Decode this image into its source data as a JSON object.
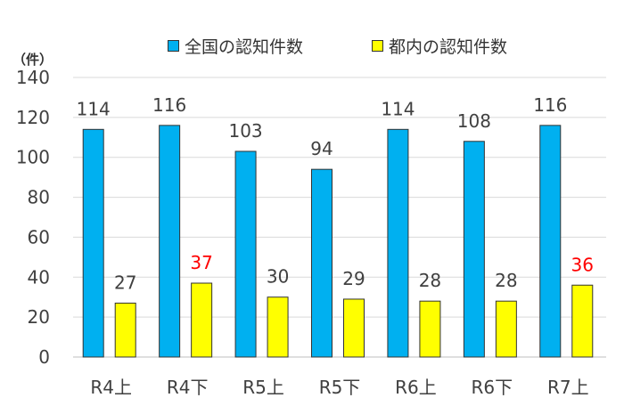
{
  "chart_data": {
    "type": "bar",
    "unit_label": "（件）",
    "categories": [
      "R4上",
      "R4下",
      "R5上",
      "R5下",
      "R6上",
      "R6下",
      "R7上"
    ],
    "series": [
      {
        "name": "全国の認知件数",
        "values": [
          114,
          116,
          103,
          94,
          114,
          108,
          116
        ],
        "color": "#00B0F0",
        "label_colors": [
          "#404040",
          "#404040",
          "#404040",
          "#404040",
          "#404040",
          "#404040",
          "#404040"
        ]
      },
      {
        "name": "都内の認知件数",
        "values": [
          27,
          37,
          30,
          29,
          28,
          28,
          36
        ],
        "color": "#FFFF00",
        "label_colors": [
          "#404040",
          "#FF0000",
          "#404040",
          "#404040",
          "#404040",
          "#404040",
          "#FF0000"
        ]
      }
    ],
    "yticks": [
      0,
      20,
      40,
      60,
      80,
      100,
      120,
      140
    ],
    "ylim": [
      0,
      140
    ],
    "grid": true,
    "legend_position": "top"
  }
}
